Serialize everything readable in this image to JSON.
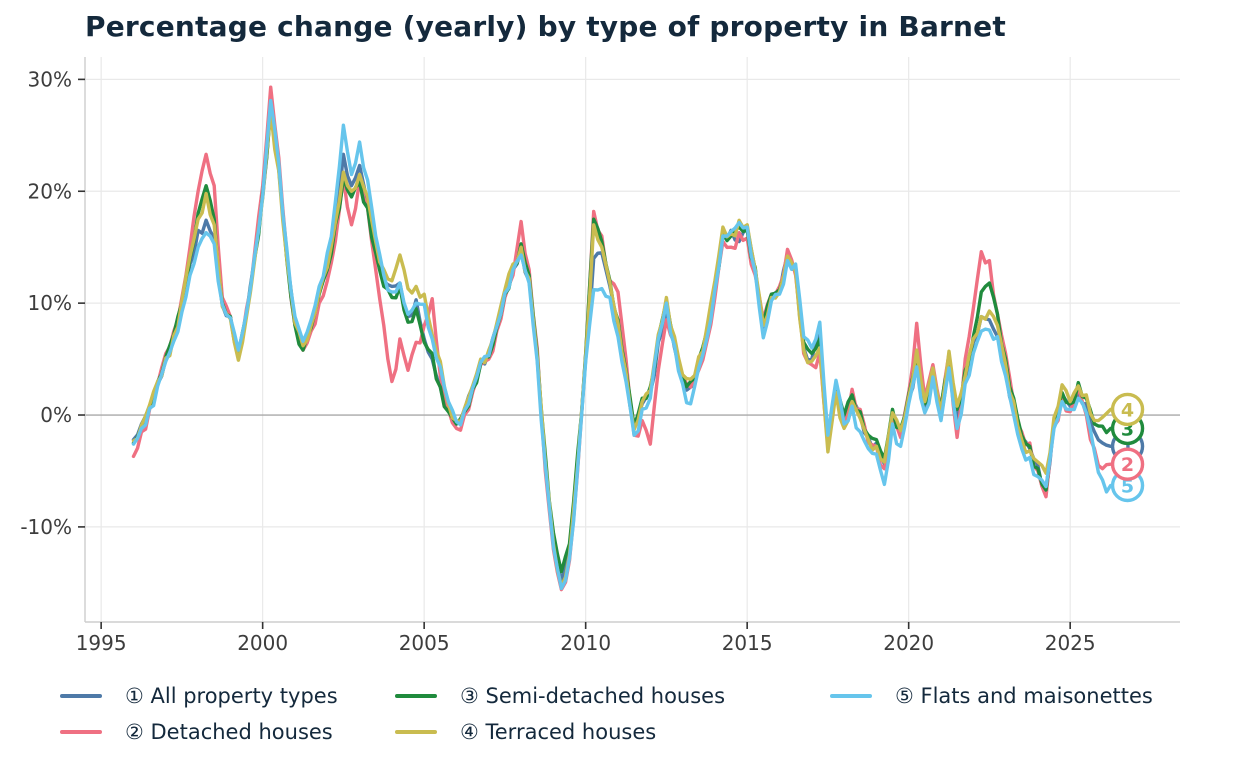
{
  "title": "Percentage change (yearly) by type of property in Barnet",
  "chart_data": {
    "type": "line",
    "title": "Percentage change (yearly) by type of property in Barnet",
    "x_axis": {
      "tick_labels": [
        "1995",
        "2000",
        "2005",
        "2010",
        "2015",
        "2020",
        "2025"
      ],
      "tick_values": [
        1995,
        2000,
        2005,
        2010,
        2015,
        2020,
        2025
      ]
    },
    "y_axis": {
      "tick_labels": [
        "30%",
        "20%",
        "10%",
        "0%",
        "-10%"
      ],
      "tick_values": [
        30,
        20,
        10,
        0,
        -10
      ],
      "unit": "%"
    },
    "xlim": [
      1994.5,
      2028.4
    ],
    "ylim": [
      -18.5,
      32.0
    ],
    "grid": true,
    "zero_line_emphasized": true,
    "legend_position": "bottom",
    "x_start": 1996.0,
    "x_step": 0.25,
    "series": [
      {
        "badge": "1",
        "legend_label": "① All property types",
        "name": "All property types",
        "color": "#4e7aa8",
        "values": [
          -2.2,
          -0.8,
          0.8,
          2.8,
          5.0,
          7.0,
          9.8,
          13.5,
          16.5,
          17.4,
          15.8,
          9.8,
          8.8,
          5.6,
          9.0,
          14.0,
          19.5,
          27.7,
          22.0,
          14.0,
          8.3,
          6.3,
          8.0,
          11.0,
          13.5,
          17.5,
          23.3,
          20.5,
          22.3,
          19.0,
          15.0,
          12.0,
          11.5,
          11.8,
          8.8,
          10.3,
          6.8,
          5.0,
          2.5,
          0.5,
          -0.8,
          0.5,
          2.5,
          4.8,
          5.5,
          8.0,
          11.0,
          13.0,
          14.8,
          12.0,
          5.0,
          -4.0,
          -11.0,
          -14.8,
          -12.0,
          -4.0,
          5.0,
          14.0,
          14.5,
          11.5,
          8.0,
          3.5,
          -1.2,
          1.0,
          2.0,
          6.5,
          9.3,
          6.0,
          3.0,
          2.5,
          4.5,
          7.0,
          11.0,
          16.0,
          16.5,
          15.5,
          16.8,
          13.0,
          7.8,
          10.5,
          11.0,
          14.3,
          13.0,
          6.0,
          5.0,
          7.7,
          -2.5,
          2.8,
          -0.5,
          1.5,
          0.0,
          -2.0,
          -2.5,
          -4.4,
          0.0,
          -1.5,
          1.5,
          4.6,
          0.7,
          4.0,
          -0.2,
          5.0,
          -0.6,
          3.0,
          6.5,
          8.8,
          8.5,
          7.0,
          4.0,
          0.5,
          -2.0,
          -3.0,
          -4.5,
          -6.9,
          -0.5,
          1.8,
          0.8,
          2.0,
          1.0,
          -1.5,
          -2.5,
          -2.8
        ]
      },
      {
        "badge": "2",
        "legend_label": "② Detached houses",
        "name": "Detached houses",
        "color": "#ef7082",
        "values": [
          -3.7,
          -1.5,
          0.5,
          2.8,
          5.5,
          7.5,
          10.5,
          15.0,
          20.0,
          23.3,
          20.5,
          10.5,
          8.8,
          5.3,
          9.5,
          14.5,
          20.5,
          29.3,
          23.0,
          14.5,
          8.0,
          5.8,
          7.5,
          10.0,
          12.0,
          15.5,
          21.2,
          17.0,
          21.0,
          18.5,
          13.0,
          8.0,
          3.0,
          6.8,
          4.0,
          6.5,
          8.0,
          10.4,
          3.5,
          0.5,
          -1.2,
          0.0,
          2.0,
          4.5,
          5.0,
          7.5,
          10.5,
          12.5,
          17.3,
          13.0,
          6.0,
          -5.0,
          -12.0,
          -15.6,
          -13.0,
          -5.0,
          5.5,
          18.2,
          16.0,
          12.0,
          11.0,
          5.0,
          -1.8,
          -0.5,
          -2.6,
          4.0,
          8.5,
          6.5,
          3.5,
          2.5,
          4.0,
          6.5,
          10.5,
          15.5,
          15.0,
          16.3,
          15.8,
          12.5,
          8.5,
          10.8,
          11.5,
          14.8,
          12.5,
          5.5,
          4.5,
          5.6,
          -2.8,
          2.2,
          -1.0,
          2.3,
          0.5,
          -2.5,
          -2.8,
          -4.8,
          -0.5,
          -2.0,
          2.0,
          8.2,
          1.5,
          4.5,
          0.5,
          5.5,
          -2.0,
          5.0,
          9.5,
          14.6,
          13.8,
          9.0,
          5.5,
          1.0,
          -1.5,
          -2.5,
          -5.0,
          -7.3,
          -1.0,
          1.5,
          0.3,
          2.4,
          0.0,
          -3.0,
          -4.8,
          -4.4
        ]
      },
      {
        "badge": "3",
        "legend_label": "③ Semi-detached houses",
        "name": "Semi-detached houses",
        "color": "#208b3d",
        "values": [
          -2.5,
          -1.0,
          0.8,
          3.0,
          5.2,
          7.2,
          10.0,
          14.0,
          18.0,
          20.5,
          17.5,
          10.0,
          8.8,
          5.5,
          9.0,
          14.0,
          19.8,
          27.3,
          22.0,
          13.8,
          8.0,
          5.8,
          7.8,
          10.8,
          13.0,
          17.0,
          21.2,
          19.5,
          20.8,
          18.5,
          14.5,
          11.5,
          10.5,
          11.5,
          8.3,
          9.5,
          6.5,
          5.5,
          2.5,
          0.3,
          -0.8,
          0.3,
          2.3,
          4.6,
          5.2,
          7.8,
          10.8,
          13.2,
          15.3,
          12.5,
          5.5,
          -3.5,
          -10.5,
          -14.0,
          -11.5,
          -3.5,
          5.5,
          17.5,
          15.5,
          12.0,
          8.5,
          4.0,
          -1.0,
          1.5,
          2.5,
          7.0,
          10.2,
          6.5,
          3.4,
          3.0,
          5.0,
          7.5,
          11.5,
          16.3,
          16.0,
          16.8,
          16.5,
          13.2,
          8.2,
          10.8,
          11.2,
          14.0,
          13.2,
          6.5,
          5.5,
          6.8,
          -2.2,
          2.5,
          0.0,
          1.8,
          0.3,
          -1.8,
          -2.2,
          -3.9,
          0.5,
          -1.2,
          1.8,
          5.2,
          1.0,
          3.8,
          0.8,
          4.8,
          0.5,
          4.0,
          7.0,
          11.0,
          11.8,
          9.0,
          5.0,
          1.5,
          -1.8,
          -2.8,
          -4.8,
          -6.7,
          -0.8,
          2.0,
          1.0,
          2.9,
          1.5,
          -0.8,
          -1.0,
          -1.2
        ]
      },
      {
        "badge": "4",
        "legend_label": "④ Terraced houses",
        "name": "Terraced houses",
        "color": "#c9bc50",
        "values": [
          -2.3,
          -0.9,
          0.9,
          3.0,
          5.1,
          7.1,
          10.2,
          14.2,
          17.5,
          19.8,
          17.0,
          9.7,
          8.6,
          4.9,
          8.8,
          13.8,
          19.4,
          27.2,
          21.8,
          13.9,
          8.2,
          6.2,
          8.0,
          11.0,
          13.2,
          17.2,
          21.7,
          20.0,
          21.5,
          19.5,
          15.5,
          13.0,
          12.0,
          14.3,
          11.3,
          11.5,
          10.8,
          7.2,
          4.8,
          1.0,
          -0.5,
          0.6,
          2.6,
          5.0,
          5.8,
          8.2,
          11.2,
          13.5,
          15.0,
          12.2,
          5.2,
          -4.2,
          -11.5,
          -15.3,
          -12.5,
          -4.5,
          5.2,
          17.0,
          15.0,
          11.8,
          8.2,
          3.8,
          -1.3,
          1.2,
          2.2,
          7.2,
          10.5,
          7.0,
          3.6,
          3.2,
          5.2,
          7.8,
          12.0,
          16.8,
          16.2,
          17.4,
          17.0,
          13.0,
          8.0,
          10.5,
          11.0,
          14.2,
          12.8,
          5.8,
          4.8,
          6.0,
          -3.3,
          2.0,
          -1.2,
          1.2,
          -0.3,
          -2.2,
          -2.8,
          -4.2,
          0.2,
          -1.4,
          1.6,
          5.8,
          1.2,
          4.2,
          0.3,
          5.7,
          0.8,
          3.5,
          6.8,
          8.8,
          9.3,
          8.0,
          4.5,
          1.2,
          -2.2,
          -3.2,
          -4.2,
          -5.2,
          -0.2,
          2.7,
          1.2,
          2.6,
          1.8,
          -0.5,
          -0.2,
          0.5
        ]
      },
      {
        "badge": "5",
        "legend_label": "⑤ Flats and maisonettes",
        "name": "Flats and maisonettes",
        "color": "#66c5ec",
        "values": [
          -2.6,
          -1.2,
          0.6,
          2.6,
          4.8,
          6.6,
          9.2,
          12.5,
          15.0,
          16.3,
          15.3,
          9.9,
          8.7,
          5.8,
          9.2,
          14.2,
          19.6,
          28.1,
          22.5,
          14.8,
          8.8,
          6.6,
          8.5,
          11.5,
          14.5,
          19.0,
          25.9,
          21.5,
          24.4,
          21.0,
          16.0,
          12.5,
          11.0,
          11.8,
          9.0,
          10.0,
          9.9,
          6.8,
          4.3,
          1.2,
          -0.6,
          0.4,
          2.4,
          4.7,
          5.3,
          7.9,
          10.9,
          13.0,
          14.3,
          11.8,
          4.8,
          -4.5,
          -11.8,
          -15.5,
          -12.8,
          -4.8,
          4.8,
          11.2,
          11.3,
          10.5,
          7.0,
          3.0,
          -1.8,
          0.5,
          1.5,
          6.8,
          10.0,
          6.2,
          2.8,
          1.0,
          4.2,
          6.8,
          11.2,
          16.0,
          16.4,
          17.2,
          16.8,
          12.8,
          6.9,
          10.2,
          10.8,
          13.8,
          13.5,
          7.0,
          6.0,
          8.3,
          -1.8,
          3.1,
          -0.8,
          0.8,
          -1.5,
          -3.0,
          -3.5,
          -6.2,
          -0.8,
          -2.8,
          1.0,
          4.3,
          0.2,
          3.4,
          -0.5,
          4.2,
          -1.2,
          2.8,
          5.5,
          7.5,
          7.6,
          7.0,
          3.5,
          0.0,
          -3.0,
          -3.8,
          -5.5,
          -6.4,
          -1.2,
          1.2,
          0.5,
          1.5,
          0.2,
          -3.3,
          -5.8,
          -6.3
        ]
      }
    ],
    "colors": {
      "title_text": "#14293c",
      "axis_text": "#3d3d3d",
      "grid": "#e9e9e9",
      "zero_line": "#a9a9a9",
      "axis_line": "#cdcdcd",
      "tick_mark": "#333333",
      "badge_fill": "#ffffff"
    }
  }
}
